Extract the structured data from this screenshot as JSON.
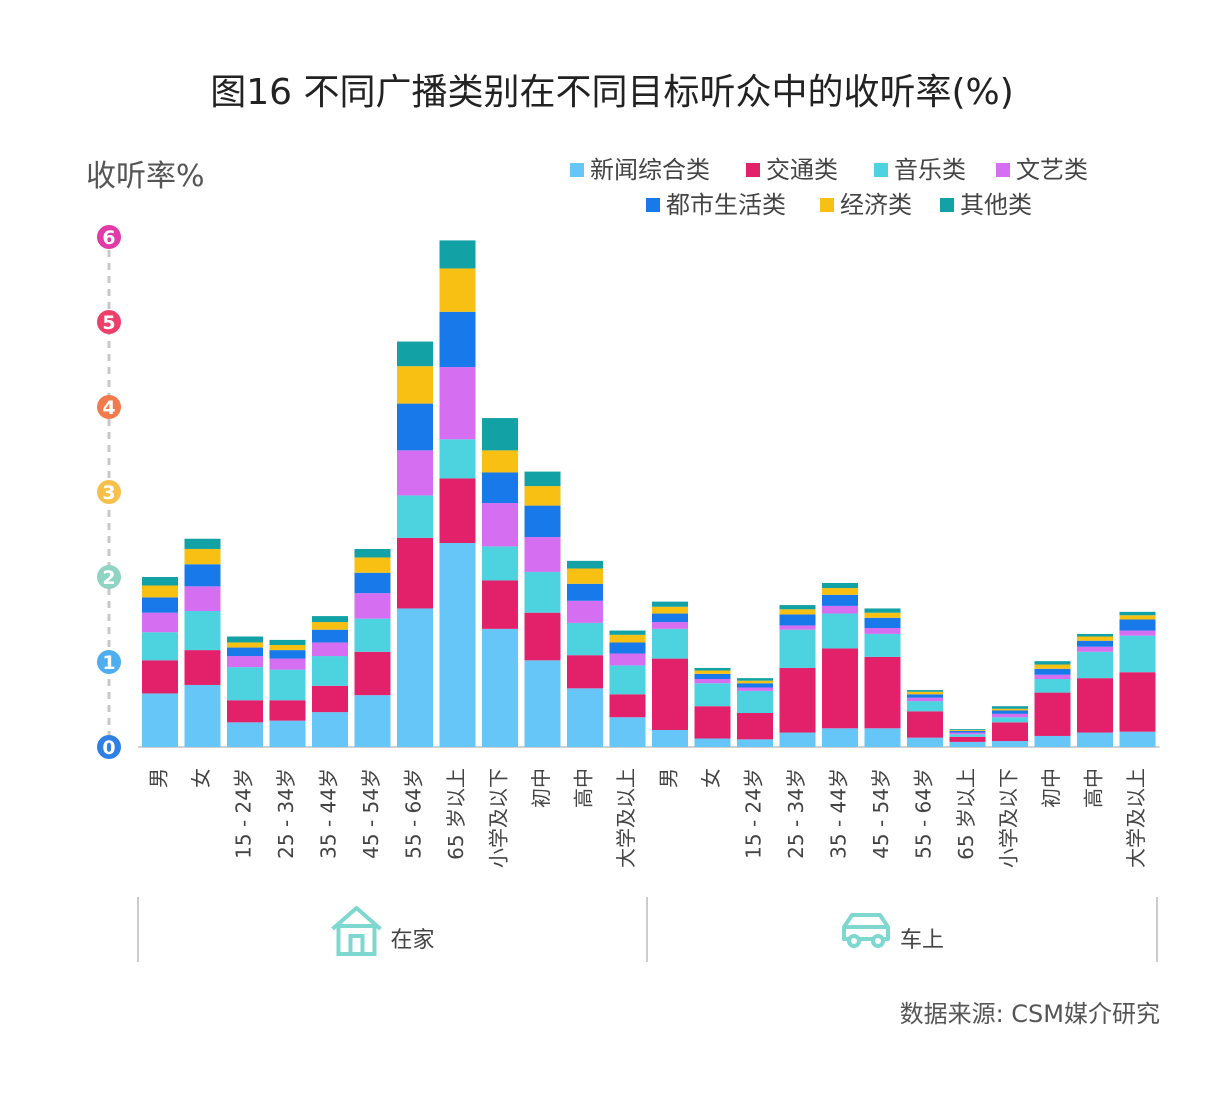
{
  "title": "图16 不同广播类别在不同目标听众中的收听率(%)",
  "source": "数据来源: CSM媒介研究",
  "chart_data": {
    "type": "bar",
    "stacked": true,
    "ylabel": "收听率%",
    "ylim": [
      0,
      6
    ],
    "yticks": [
      {
        "value": 0,
        "label": "0",
        "color": "#2e7fe6"
      },
      {
        "value": 1,
        "label": "1",
        "color": "#4eaef0"
      },
      {
        "value": 2,
        "label": "2",
        "color": "#8fd3c3"
      },
      {
        "value": 3,
        "label": "3",
        "color": "#f7c04a"
      },
      {
        "value": 4,
        "label": "4",
        "color": "#f27a4b"
      },
      {
        "value": 5,
        "label": "5",
        "color": "#ee3f6a"
      },
      {
        "value": 6,
        "label": "6",
        "color": "#e03ba8"
      }
    ],
    "grid": false,
    "legend_position": "top-right",
    "groups": [
      {
        "label": "在家",
        "icon": "house-icon",
        "start": 0,
        "end": 11
      },
      {
        "label": "车上",
        "icon": "car-icon",
        "start": 12,
        "end": 23
      }
    ],
    "categories": [
      "男",
      "女",
      "15 - 24岁",
      "25 - 34岁",
      "35 - 44岁",
      "45 - 54岁",
      "55 - 64岁",
      "65 岁以上",
      "小学及以下",
      "初中",
      "高中",
      "大学及以上",
      "男",
      "女",
      "15 - 24岁",
      "25 - 34岁",
      "35 - 44岁",
      "45 - 54岁",
      "55 - 64岁",
      "65 岁以上",
      "小学及以下",
      "初中",
      "高中",
      "大学及以上"
    ],
    "series": [
      {
        "name": "新闻综合类",
        "color": "#66c6f8",
        "values": [
          0.63,
          0.73,
          0.29,
          0.31,
          0.41,
          0.61,
          1.63,
          2.4,
          1.39,
          1.02,
          0.69,
          0.35,
          0.2,
          0.1,
          0.09,
          0.17,
          0.22,
          0.22,
          0.11,
          0.06,
          0.07,
          0.13,
          0.17,
          0.18
        ]
      },
      {
        "name": "交通类",
        "color": "#e3206a",
        "values": [
          0.39,
          0.41,
          0.26,
          0.24,
          0.31,
          0.51,
          0.83,
          0.76,
          0.57,
          0.56,
          0.39,
          0.27,
          0.84,
          0.38,
          0.31,
          0.76,
          0.94,
          0.84,
          0.31,
          0.06,
          0.22,
          0.51,
          0.64,
          0.7
        ]
      },
      {
        "name": "音乐类",
        "color": "#4dd2e0",
        "values": [
          0.33,
          0.46,
          0.39,
          0.36,
          0.35,
          0.39,
          0.5,
          0.46,
          0.4,
          0.48,
          0.38,
          0.34,
          0.35,
          0.27,
          0.26,
          0.45,
          0.41,
          0.27,
          0.12,
          0.03,
          0.06,
          0.16,
          0.31,
          0.43
        ]
      },
      {
        "name": "文艺类",
        "color": "#d66ef2",
        "values": [
          0.23,
          0.29,
          0.13,
          0.13,
          0.16,
          0.3,
          0.53,
          0.85,
          0.51,
          0.41,
          0.26,
          0.14,
          0.08,
          0.05,
          0.04,
          0.05,
          0.09,
          0.07,
          0.04,
          0.02,
          0.04,
          0.05,
          0.06,
          0.06
        ]
      },
      {
        "name": "都市生活类",
        "color": "#1779ea",
        "values": [
          0.18,
          0.26,
          0.1,
          0.1,
          0.15,
          0.24,
          0.55,
          0.65,
          0.36,
          0.37,
          0.2,
          0.13,
          0.1,
          0.06,
          0.05,
          0.13,
          0.13,
          0.12,
          0.04,
          0.02,
          0.04,
          0.07,
          0.07,
          0.13
        ]
      },
      {
        "name": "经济类",
        "color": "#f8c013",
        "values": [
          0.14,
          0.18,
          0.06,
          0.06,
          0.09,
          0.18,
          0.44,
          0.51,
          0.26,
          0.23,
          0.18,
          0.09,
          0.08,
          0.04,
          0.03,
          0.06,
          0.08,
          0.06,
          0.03,
          0.01,
          0.02,
          0.05,
          0.05,
          0.05
        ]
      },
      {
        "name": "其他类",
        "color": "#12a1a4",
        "values": [
          0.1,
          0.12,
          0.07,
          0.06,
          0.07,
          0.1,
          0.29,
          0.33,
          0.38,
          0.17,
          0.09,
          0.05,
          0.06,
          0.03,
          0.03,
          0.05,
          0.06,
          0.05,
          0.02,
          0.01,
          0.03,
          0.04,
          0.03,
          0.04
        ]
      }
    ]
  }
}
